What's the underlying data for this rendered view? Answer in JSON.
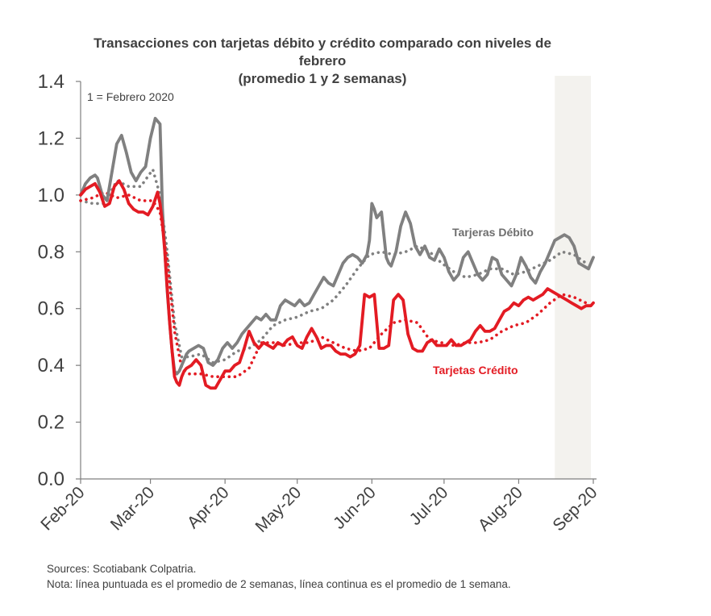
{
  "chart_data": {
    "type": "line",
    "title_lines": [
      "Transacciones con tarjetas débito y crédito comparado con niveles de",
      "febrero",
      "(promedio 1 y 2 semanas)"
    ],
    "annotation": "1 = Febrero 2020",
    "x_tick_labels": [
      "Feb-20",
      "Mar-20",
      "Apr-20",
      "May-20",
      "Jun-20",
      "Jul-20",
      "Aug-20",
      "Sep-20"
    ],
    "y_tick_labels": [
      "0.0",
      "0.2",
      "0.4",
      "0.6",
      "0.8",
      "1.0",
      "1.2",
      "1.4"
    ],
    "ylim": [
      0,
      1.4
    ],
    "x_range_days": [
      0,
      213
    ],
    "shaded_region_days": [
      197,
      213
    ],
    "grid": false,
    "series": [
      {
        "name": "Tarjeras Débito",
        "style": "solid",
        "color": "#808080",
        "x": [
          0,
          2,
          4,
          6,
          7,
          9,
          11,
          13,
          15,
          17,
          19,
          21,
          23,
          25,
          27,
          29,
          31,
          33,
          33.5,
          34,
          35,
          36,
          37,
          38,
          39,
          40,
          41,
          42,
          43,
          44,
          45,
          47,
          49,
          51,
          53,
          55,
          57,
          59,
          61,
          63,
          65,
          67,
          69,
          71,
          73,
          75,
          77,
          79,
          81,
          83,
          85,
          87,
          89,
          91,
          93,
          95,
          97,
          99,
          101,
          103,
          105,
          107,
          109,
          111,
          113,
          115,
          117,
          119,
          120,
          121,
          122,
          123,
          125,
          127,
          128,
          129,
          131,
          133,
          135,
          137,
          139,
          141,
          143,
          145,
          147,
          149,
          151,
          153,
          155,
          157,
          159,
          161,
          163,
          165,
          167,
          169,
          171,
          173,
          175,
          177,
          179,
          181,
          183,
          185,
          187,
          189,
          191,
          193,
          195,
          197,
          199,
          201,
          203,
          205,
          207,
          209,
          211,
          213
        ],
        "values": [
          1.0,
          1.04,
          1.06,
          1.07,
          1.06,
          1.0,
          0.98,
          1.08,
          1.18,
          1.21,
          1.15,
          1.08,
          1.05,
          1.08,
          1.1,
          1.2,
          1.27,
          1.25,
          1.1,
          0.95,
          0.8,
          0.66,
          0.55,
          0.45,
          0.38,
          0.37,
          0.38,
          0.4,
          0.42,
          0.44,
          0.45,
          0.46,
          0.47,
          0.46,
          0.41,
          0.4,
          0.42,
          0.46,
          0.48,
          0.46,
          0.48,
          0.51,
          0.53,
          0.55,
          0.57,
          0.56,
          0.58,
          0.56,
          0.56,
          0.61,
          0.63,
          0.62,
          0.61,
          0.63,
          0.61,
          0.62,
          0.65,
          0.68,
          0.71,
          0.69,
          0.68,
          0.72,
          0.76,
          0.78,
          0.79,
          0.78,
          0.76,
          0.79,
          0.84,
          0.97,
          0.95,
          0.92,
          0.94,
          0.78,
          0.76,
          0.75,
          0.8,
          0.89,
          0.94,
          0.9,
          0.82,
          0.79,
          0.82,
          0.78,
          0.77,
          0.81,
          0.78,
          0.73,
          0.7,
          0.72,
          0.78,
          0.8,
          0.76,
          0.72,
          0.7,
          0.72,
          0.78,
          0.77,
          0.72,
          0.7,
          0.68,
          0.72,
          0.78,
          0.75,
          0.71,
          0.69,
          0.73,
          0.76,
          0.8,
          0.84,
          0.85,
          0.86,
          0.85,
          0.82,
          0.76,
          0.75,
          0.74,
          0.78
        ]
      },
      {
        "name": "Tarjeras Débito",
        "style": "dotted",
        "color": "#808080",
        "x": [
          0,
          5,
          10,
          15,
          20,
          25,
          30,
          33,
          36,
          39,
          42,
          45,
          50,
          55,
          60,
          65,
          70,
          75,
          80,
          85,
          90,
          95,
          100,
          105,
          110,
          115,
          120,
          125,
          130,
          135,
          140,
          145,
          150,
          155,
          160,
          165,
          170,
          175,
          180,
          185,
          190,
          195,
          200,
          205,
          210
        ],
        "values": [
          0.98,
          0.97,
          0.97,
          1.05,
          1.03,
          1.03,
          1.09,
          1.0,
          0.8,
          0.55,
          0.43,
          0.43,
          0.44,
          0.41,
          0.42,
          0.45,
          0.46,
          0.49,
          0.54,
          0.56,
          0.57,
          0.59,
          0.6,
          0.63,
          0.68,
          0.74,
          0.79,
          0.8,
          0.79,
          0.8,
          0.82,
          0.8,
          0.76,
          0.73,
          0.71,
          0.72,
          0.74,
          0.74,
          0.72,
          0.73,
          0.75,
          0.77,
          0.8,
          0.79,
          0.76
        ]
      },
      {
        "name": "Tarjetas Crédito",
        "style": "solid",
        "color": "#e31b23",
        "x": [
          0,
          2,
          4,
          6,
          8,
          10,
          12,
          14,
          16,
          18,
          20,
          22,
          24,
          26,
          28,
          30,
          32,
          33,
          34,
          35,
          36,
          37,
          38,
          39,
          40,
          41,
          42,
          43,
          44,
          46,
          48,
          50,
          52,
          54,
          56,
          58,
          60,
          62,
          64,
          66,
          68,
          70,
          72,
          74,
          76,
          78,
          80,
          82,
          84,
          86,
          88,
          90,
          92,
          94,
          96,
          98,
          100,
          102,
          104,
          106,
          108,
          110,
          112,
          114,
          116,
          118,
          120,
          122,
          124,
          126,
          128,
          130,
          132,
          134,
          136,
          138,
          140,
          142,
          144,
          146,
          148,
          150,
          152,
          154,
          156,
          158,
          160,
          162,
          164,
          166,
          168,
          170,
          172,
          174,
          176,
          178,
          180,
          182,
          184,
          186,
          188,
          190,
          192,
          194,
          196,
          198,
          200,
          202,
          204,
          206,
          208,
          210,
          212,
          213
        ],
        "values": [
          1.0,
          1.02,
          1.03,
          1.04,
          1.01,
          0.96,
          0.97,
          1.03,
          1.05,
          1.02,
          0.97,
          0.95,
          0.94,
          0.94,
          0.93,
          0.96,
          1.01,
          0.97,
          0.9,
          0.8,
          0.67,
          0.55,
          0.45,
          0.36,
          0.34,
          0.33,
          0.36,
          0.38,
          0.39,
          0.4,
          0.42,
          0.4,
          0.33,
          0.32,
          0.32,
          0.35,
          0.38,
          0.38,
          0.4,
          0.41,
          0.46,
          0.52,
          0.48,
          0.46,
          0.48,
          0.47,
          0.46,
          0.48,
          0.47,
          0.49,
          0.5,
          0.47,
          0.46,
          0.5,
          0.53,
          0.5,
          0.46,
          0.47,
          0.47,
          0.45,
          0.44,
          0.44,
          0.43,
          0.44,
          0.47,
          0.65,
          0.64,
          0.65,
          0.46,
          0.46,
          0.47,
          0.63,
          0.65,
          0.63,
          0.51,
          0.46,
          0.45,
          0.45,
          0.48,
          0.49,
          0.47,
          0.47,
          0.47,
          0.49,
          0.47,
          0.47,
          0.48,
          0.49,
          0.52,
          0.54,
          0.52,
          0.52,
          0.53,
          0.56,
          0.59,
          0.6,
          0.62,
          0.61,
          0.63,
          0.64,
          0.63,
          0.64,
          0.65,
          0.67,
          0.66,
          0.65,
          0.64,
          0.63,
          0.62,
          0.61,
          0.6,
          0.61,
          0.61,
          0.62
        ]
      },
      {
        "name": "Tarjetas Crédito",
        "style": "dotted",
        "color": "#e31b23",
        "x": [
          0,
          5,
          10,
          15,
          20,
          25,
          30,
          33,
          36,
          39,
          42,
          45,
          50,
          55,
          60,
          65,
          70,
          75,
          80,
          85,
          90,
          95,
          100,
          105,
          110,
          115,
          120,
          125,
          130,
          135,
          140,
          145,
          150,
          155,
          160,
          165,
          170,
          175,
          180,
          185,
          190,
          195,
          200,
          205,
          210
        ],
        "values": [
          0.98,
          0.99,
          1.01,
          0.99,
          1.0,
          0.98,
          0.98,
          0.94,
          0.77,
          0.52,
          0.39,
          0.37,
          0.37,
          0.36,
          0.36,
          0.36,
          0.39,
          0.48,
          0.48,
          0.47,
          0.48,
          0.48,
          0.5,
          0.48,
          0.46,
          0.45,
          0.46,
          0.51,
          0.55,
          0.56,
          0.55,
          0.49,
          0.48,
          0.47,
          0.48,
          0.48,
          0.49,
          0.52,
          0.54,
          0.55,
          0.58,
          0.62,
          0.65,
          0.64,
          0.62
        ]
      }
    ],
    "series_labels": {
      "debit": "Tarjeras Débito",
      "credit": "Tarjetas Crédito"
    },
    "colors": {
      "debit": "#808080",
      "credit": "#e31b23",
      "shade": "#f3f2ee",
      "axis": "#7f7f7f",
      "text": "#404040"
    }
  },
  "footer": {
    "source": "Sources: Scotiabank Colpatria.",
    "note": "Nota: línea puntuada es el promedio de 2 semanas, línea continua es el promedio de 1 semana."
  }
}
